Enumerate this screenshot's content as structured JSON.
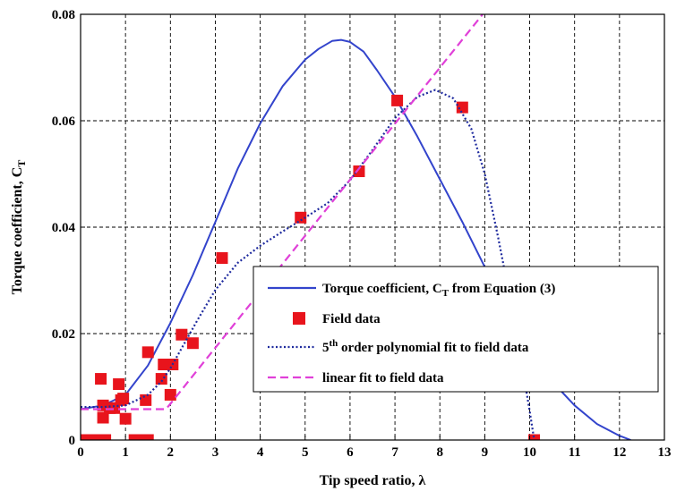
{
  "chart_data": {
    "type": "line",
    "xlabel": "Tip speed ratio, λ",
    "ylabel_main": "Torque coefficient, C",
    "ylabel_sub": "T",
    "xlim": [
      0,
      13
    ],
    "ylim": [
      0,
      0.08
    ],
    "xticks": [
      "0",
      "1",
      "2",
      "3",
      "4",
      "5",
      "6",
      "7",
      "8",
      "9",
      "10",
      "11",
      "12",
      "13"
    ],
    "yticks": [
      "0",
      "0.02",
      "0.04",
      "0.06",
      "0.08"
    ],
    "grid": true,
    "legend_position": "lower-right",
    "series": [
      {
        "name_main": "Torque coefficient, C",
        "name_sub": "T",
        "name_tail": " from Equation (3)",
        "style": "solid",
        "color": "#3344cc",
        "points": [
          [
            0,
            0.0058
          ],
          [
            0.5,
            0.0065
          ],
          [
            1,
            0.0085
          ],
          [
            1.5,
            0.014
          ],
          [
            2,
            0.022
          ],
          [
            2.5,
            0.031
          ],
          [
            3,
            0.041
          ],
          [
            3.5,
            0.051
          ],
          [
            4,
            0.0595
          ],
          [
            4.5,
            0.0665
          ],
          [
            5,
            0.0715
          ],
          [
            5.3,
            0.0735
          ],
          [
            5.6,
            0.075
          ],
          [
            5.8,
            0.0752
          ],
          [
            6.0,
            0.0748
          ],
          [
            6.3,
            0.073
          ],
          [
            6.6,
            0.0695
          ],
          [
            7,
            0.0645
          ],
          [
            7.5,
            0.057
          ],
          [
            8,
            0.049
          ],
          [
            8.5,
            0.041
          ],
          [
            9,
            0.0325
          ],
          [
            9.5,
            0.0245
          ],
          [
            10,
            0.017
          ],
          [
            10.5,
            0.011
          ],
          [
            11,
            0.0065
          ],
          [
            11.5,
            0.003
          ],
          [
            12,
            0.0008
          ],
          [
            12.25,
            0
          ]
        ]
      },
      {
        "name": "Field data",
        "style": "marker",
        "color": "#e8141c",
        "points": [
          [
            0,
            0
          ],
          [
            0.1,
            0
          ],
          [
            0.2,
            0
          ],
          [
            0.3,
            0
          ],
          [
            0.4,
            0
          ],
          [
            0.45,
            0.0115
          ],
          [
            0.5,
            0.0065
          ],
          [
            0.55,
            0
          ],
          [
            0.5,
            0.0042
          ],
          [
            0.65,
            0.006
          ],
          [
            0.75,
            0.006
          ],
          [
            0.85,
            0.0105
          ],
          [
            0.9,
            0.0075
          ],
          [
            0.95,
            0.0078
          ],
          [
            1.0,
            0.004
          ],
          [
            1.2,
            0
          ],
          [
            1.3,
            0
          ],
          [
            1.4,
            0
          ],
          [
            1.45,
            0.0075
          ],
          [
            1.5,
            0
          ],
          [
            1.5,
            0.0165
          ],
          [
            1.8,
            0.0115
          ],
          [
            1.85,
            0.0142
          ],
          [
            2.0,
            0.0085
          ],
          [
            2.05,
            0.0142
          ],
          [
            2.25,
            0.0198
          ],
          [
            2.5,
            0.0182
          ],
          [
            3.15,
            0.0342
          ],
          [
            4.9,
            0.0418
          ],
          [
            6.2,
            0.0505
          ],
          [
            7.05,
            0.0638
          ],
          [
            8.5,
            0.0625
          ],
          [
            10.1,
            0
          ]
        ]
      },
      {
        "name_main": "5",
        "name_sup": "th",
        "name_tail": " order polynomial fit to field data",
        "style": "dotted",
        "color": "#1e2a9e",
        "points": [
          [
            0,
            0.0062
          ],
          [
            0.5,
            0.0062
          ],
          [
            1,
            0.0065
          ],
          [
            1.5,
            0.0085
          ],
          [
            1.8,
            0.011
          ],
          [
            2.0,
            0.0135
          ],
          [
            2.3,
            0.018
          ],
          [
            2.6,
            0.0225
          ],
          [
            3.0,
            0.0282
          ],
          [
            3.5,
            0.0333
          ],
          [
            4.0,
            0.0365
          ],
          [
            4.5,
            0.0392
          ],
          [
            5.0,
            0.0418
          ],
          [
            5.5,
            0.0445
          ],
          [
            6.0,
            0.0488
          ],
          [
            6.5,
            0.0545
          ],
          [
            7.0,
            0.0605
          ],
          [
            7.5,
            0.0645
          ],
          [
            7.9,
            0.0658
          ],
          [
            8.3,
            0.0642
          ],
          [
            8.7,
            0.0585
          ],
          [
            9.0,
            0.05
          ],
          [
            9.3,
            0.038
          ],
          [
            9.6,
            0.025
          ],
          [
            9.8,
            0.0155
          ],
          [
            10.0,
            0.0055
          ],
          [
            10.1,
            0
          ]
        ]
      },
      {
        "name": "linear fit to field data",
        "style": "dashed",
        "color": "#e040d8",
        "points": [
          [
            0,
            0.0058
          ],
          [
            1.9,
            0.0058
          ],
          [
            2.0,
            0.0068
          ],
          [
            9.0,
            0.0805
          ]
        ]
      }
    ],
    "legend_entries": [
      "Torque coefficient, C_T from Equation (3)",
      "Field data",
      "5th order polynomial fit to field data",
      "linear fit to field data"
    ]
  }
}
